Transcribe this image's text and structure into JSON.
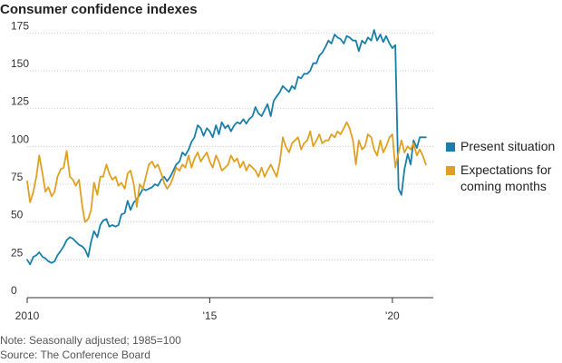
{
  "title": "Consumer confidence indexes",
  "notes": {
    "note": "Note: Seasonally adjusted; 1985=100",
    "source": "Source: The Conference Board"
  },
  "colors": {
    "present": "#1a7fa8",
    "expectations": "#e0a123",
    "grid": "#cccccc",
    "axis": "#333333"
  },
  "chart_data": {
    "type": "line",
    "title": "Consumer confidence indexes",
    "xlabel": "",
    "ylabel": "",
    "ylim": [
      0,
      180
    ],
    "xlim": [
      2010.0,
      2021.12
    ],
    "grid": true,
    "legend_position": "right",
    "y_ticks": [
      {
        "value": 0,
        "label": "0"
      },
      {
        "value": 25,
        "label": "25"
      },
      {
        "value": 50,
        "label": "50"
      },
      {
        "value": 75,
        "label": "75"
      },
      {
        "value": 100,
        "label": "100"
      },
      {
        "value": 125,
        "label": "125"
      },
      {
        "value": 150,
        "label": "150"
      },
      {
        "value": 175,
        "label": "175"
      }
    ],
    "x_ticks": [
      {
        "value": 2010.0,
        "label": "2010"
      },
      {
        "value": 2015.0,
        "label": "'15"
      },
      {
        "value": 2020.0,
        "label": "'20"
      }
    ],
    "series": [
      {
        "name": "Present situation",
        "color": "#1a7fa8",
        "x": [
          2010.0,
          2010.08,
          2010.17,
          2010.25,
          2010.33,
          2010.42,
          2010.5,
          2010.58,
          2010.67,
          2010.75,
          2010.83,
          2010.92,
          2011.0,
          2011.08,
          2011.17,
          2011.25,
          2011.33,
          2011.42,
          2011.5,
          2011.58,
          2011.67,
          2011.75,
          2011.83,
          2011.92,
          2012.0,
          2012.08,
          2012.17,
          2012.25,
          2012.33,
          2012.42,
          2012.5,
          2012.58,
          2012.67,
          2012.75,
          2012.83,
          2012.92,
          2013.0,
          2013.08,
          2013.17,
          2013.25,
          2013.33,
          2013.42,
          2013.5,
          2013.58,
          2013.67,
          2013.75,
          2013.83,
          2013.92,
          2014.0,
          2014.08,
          2014.17,
          2014.25,
          2014.33,
          2014.42,
          2014.5,
          2014.58,
          2014.67,
          2014.75,
          2014.83,
          2014.92,
          2015.0,
          2015.08,
          2015.17,
          2015.25,
          2015.33,
          2015.42,
          2015.5,
          2015.58,
          2015.67,
          2015.75,
          2015.83,
          2015.92,
          2016.0,
          2016.08,
          2016.17,
          2016.25,
          2016.33,
          2016.42,
          2016.5,
          2016.58,
          2016.67,
          2016.75,
          2016.83,
          2016.92,
          2017.0,
          2017.08,
          2017.17,
          2017.25,
          2017.33,
          2017.42,
          2017.5,
          2017.58,
          2017.67,
          2017.75,
          2017.83,
          2017.92,
          2018.0,
          2018.08,
          2018.17,
          2018.25,
          2018.33,
          2018.42,
          2018.5,
          2018.58,
          2018.67,
          2018.75,
          2018.83,
          2018.92,
          2019.0,
          2019.08,
          2019.17,
          2019.25,
          2019.33,
          2019.42,
          2019.5,
          2019.58,
          2019.67,
          2019.75,
          2019.83,
          2019.92,
          2020.0,
          2020.08,
          2020.17,
          2020.25,
          2020.33,
          2020.42,
          2020.5,
          2020.58,
          2020.67,
          2020.75,
          2020.83,
          2020.92
        ],
        "values": [
          25,
          22,
          27,
          28,
          30,
          27,
          26,
          24,
          23,
          24,
          28,
          31,
          34,
          38,
          40,
          39,
          37,
          35,
          34,
          32,
          27,
          37,
          44,
          40,
          48,
          51,
          52,
          47,
          48,
          47,
          48,
          55,
          56,
          64,
          58,
          63,
          65,
          68,
          72,
          71,
          72,
          73,
          75,
          74,
          78,
          80,
          77,
          80,
          84,
          88,
          90,
          96,
          94,
          98,
          103,
          106,
          114,
          112,
          107,
          112,
          110,
          106,
          114,
          108,
          116,
          112,
          114,
          110,
          114,
          116,
          115,
          118,
          115,
          118,
          120,
          126,
          122,
          120,
          124,
          128,
          120,
          130,
          133,
          136,
          140,
          138,
          136,
          140,
          138,
          146,
          145,
          148,
          148,
          150,
          155,
          155,
          160,
          162,
          166,
          170,
          168,
          174,
          172,
          171,
          168,
          173,
          172,
          170,
          170,
          163,
          170,
          168,
          172,
          170,
          177,
          170,
          174,
          169,
          173,
          168,
          165,
          167,
          72,
          68,
          85,
          95,
          88,
          104,
          99,
          106,
          106,
          106
        ]
      },
      {
        "name": "Expectations for coming months",
        "color": "#e0a123",
        "x": [
          2010.0,
          2010.08,
          2010.17,
          2010.25,
          2010.33,
          2010.42,
          2010.5,
          2010.58,
          2010.67,
          2010.75,
          2010.83,
          2010.92,
          2011.0,
          2011.08,
          2011.17,
          2011.25,
          2011.33,
          2011.42,
          2011.5,
          2011.58,
          2011.67,
          2011.75,
          2011.83,
          2011.92,
          2012.0,
          2012.08,
          2012.17,
          2012.25,
          2012.33,
          2012.42,
          2012.5,
          2012.58,
          2012.67,
          2012.75,
          2012.83,
          2012.92,
          2013.0,
          2013.08,
          2013.17,
          2013.25,
          2013.33,
          2013.42,
          2013.5,
          2013.58,
          2013.67,
          2013.75,
          2013.83,
          2013.92,
          2014.0,
          2014.08,
          2014.17,
          2014.25,
          2014.33,
          2014.42,
          2014.5,
          2014.58,
          2014.67,
          2014.75,
          2014.83,
          2014.92,
          2015.0,
          2015.08,
          2015.17,
          2015.25,
          2015.33,
          2015.42,
          2015.5,
          2015.58,
          2015.67,
          2015.75,
          2015.83,
          2015.92,
          2016.0,
          2016.08,
          2016.17,
          2016.25,
          2016.33,
          2016.42,
          2016.5,
          2016.58,
          2016.67,
          2016.75,
          2016.83,
          2016.92,
          2017.0,
          2017.08,
          2017.17,
          2017.25,
          2017.33,
          2017.42,
          2017.5,
          2017.58,
          2017.67,
          2017.75,
          2017.83,
          2017.92,
          2018.0,
          2018.08,
          2018.17,
          2018.25,
          2018.33,
          2018.42,
          2018.5,
          2018.58,
          2018.67,
          2018.75,
          2018.83,
          2018.92,
          2019.0,
          2019.08,
          2019.17,
          2019.25,
          2019.33,
          2019.42,
          2019.5,
          2019.58,
          2019.67,
          2019.75,
          2019.83,
          2019.92,
          2020.0,
          2020.08,
          2020.17,
          2020.25,
          2020.33,
          2020.42,
          2020.5,
          2020.58,
          2020.67,
          2020.75,
          2020.83,
          2020.92
        ],
        "values": [
          77,
          63,
          70,
          80,
          94,
          82,
          70,
          73,
          67,
          70,
          80,
          85,
          86,
          97,
          80,
          78,
          74,
          78,
          62,
          50,
          52,
          58,
          76,
          68,
          80,
          80,
          88,
          82,
          78,
          80,
          74,
          76,
          72,
          82,
          84,
          75,
          60,
          75,
          72,
          80,
          88,
          90,
          86,
          88,
          82,
          76,
          72,
          75,
          80,
          86,
          84,
          88,
          86,
          94,
          86,
          92,
          96,
          90,
          93,
          96,
          90,
          86,
          94,
          90,
          84,
          86,
          88,
          94,
          90,
          92,
          86,
          90,
          84,
          88,
          86,
          84,
          80,
          86,
          80,
          84,
          88,
          84,
          80,
          90,
          106,
          100,
          96,
          102,
          104,
          106,
          98,
          102,
          104,
          110,
          100,
          104,
          108,
          102,
          104,
          104,
          108,
          106,
          110,
          108,
          112,
          116,
          112,
          104,
          88,
          104,
          98,
          100,
          108,
          106,
          98,
          94,
          104,
          96,
          100,
          106,
          108,
          86,
          96,
          104,
          96,
          100,
          98,
          102,
          94,
          98,
          94,
          88
        ]
      }
    ]
  }
}
